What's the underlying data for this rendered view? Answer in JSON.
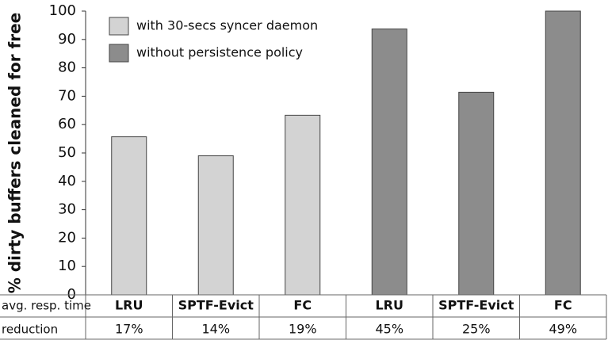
{
  "chart_data": {
    "type": "bar",
    "y_label": "% dirty buffers cleaned for free",
    "categories": [
      "LRU",
      "SPTF-Evict",
      "FC",
      "LRU",
      "SPTF-Evict",
      "FC"
    ],
    "series": [
      {
        "name": "with 30-secs syncer daemon",
        "color": "#d3d3d3",
        "values": [
          55.7,
          49,
          63.3,
          null,
          null,
          null
        ]
      },
      {
        "name": "without persistence policy",
        "color": "#8c8c8c",
        "values": [
          null,
          null,
          null,
          93.7,
          71.4,
          100
        ]
      }
    ],
    "ylim": [
      0,
      100
    ],
    "yticks": [
      0,
      10,
      20,
      30,
      40,
      50,
      60,
      70,
      80,
      90,
      100
    ],
    "legend": "upper-left",
    "table": {
      "row_label": [
        "avg. resp. time",
        "reduction"
      ],
      "values": [
        17,
        14,
        19,
        45,
        25,
        49
      ],
      "value_labels": [
        "17%",
        "14%",
        "19%",
        "45%",
        "25%",
        "49%"
      ]
    }
  }
}
